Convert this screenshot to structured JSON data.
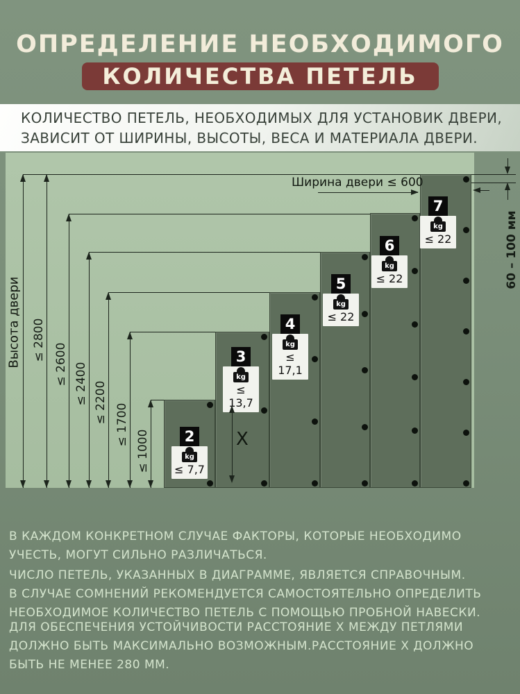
{
  "title": {
    "line1": "ОПРЕДЕЛЕНИЕ НЕОБХОДИМОГО",
    "line2": "КОЛИЧЕСТВА ПЕТЕЛЬ"
  },
  "subtitle": {
    "lines": [
      "КОЛИЧЕСТВО ПЕТЕЛЬ, НЕОБХОДИМЫХ ДЛЯ УСТАНОВИК ДВЕРИ,",
      "ЗАВИСИТ ОТ ШИРИНЫ, ВЫСОТЫ, ВЕСА И МАТЕРИАЛА ДВЕРИ."
    ]
  },
  "diagram": {
    "height_axis_label": "Высота двери",
    "width_dim_label": "Ширина двери ≤ 600",
    "top_offset_label": "60 – 100 мм",
    "hinge_gap_label": "X",
    "kg_unit": "kg",
    "doors": [
      {
        "hinges": "2",
        "max_height": "≤ 1000",
        "max_weight": "≤ 7,7"
      },
      {
        "hinges": "3",
        "max_height": "≤ 1700",
        "max_weight": "≤ 13,7"
      },
      {
        "hinges": "4",
        "max_height": "≤ 2200",
        "max_weight": "≤ 17,1"
      },
      {
        "hinges": "5",
        "max_height": "≤ 2400",
        "max_weight": "≤ 22"
      },
      {
        "hinges": "6",
        "max_height": "≤ 2600",
        "max_weight": "≤ 22"
      },
      {
        "hinges": "7",
        "max_height": "≤ 2800",
        "max_weight": "≤ 22"
      }
    ]
  },
  "notes": [
    [
      "В КАЖДОМ КОНКРЕТНОМ СЛУЧАЕ ФАКТОРЫ, КОТОРЫЕ НЕОБХОДИМО",
      "УЧЕСТЬ, МОГУТ СИЛЬНО РАЗЛИЧАТЬСЯ."
    ],
    [
      "ЧИСЛО ПЕТЕЛЬ, УКАЗАННЫХ В ДИАГРАММЕ, ЯВЛЯЕТСЯ СПРАВОЧНЫМ.",
      "В СЛУЧАЕ СОМНЕНИЙ РЕКОМЕНДУЕТСЯ САМОСТОЯТЕЛЬНО ОПРЕДЕЛИТЬ",
      "НЕОБХОДИМОЕ КОЛИЧЕСТВО ПЕТЕЛЬ С ПОМОЩЬЮ ПРОБНОЙ НАВЕСКИ."
    ],
    [
      "ДЛЯ ОБЕСПЕЧЕНИЯ УСТОЙЧИВОСТИ РАССТОЯНИЕ X МЕЖДУ ПЕТЛЯМИ",
      "ДОЛЖНО БЫТЬ МАКСИМАЛЬНО ВОЗМОЖНЫМ.РАССТОЯНИЕ X ДОЛЖНО",
      "БЫТЬ НЕ МЕНЕЕ 280 ММ."
    ]
  ],
  "colors": {
    "page_bg": "#7b8f7a",
    "banner": "#7b3a37",
    "title_text": "#f2ecda",
    "diagram_light": "#aac1a4",
    "door_panel": "#5e6e5b",
    "notes_text": "#d4e4cd",
    "line": "#1c241c"
  }
}
